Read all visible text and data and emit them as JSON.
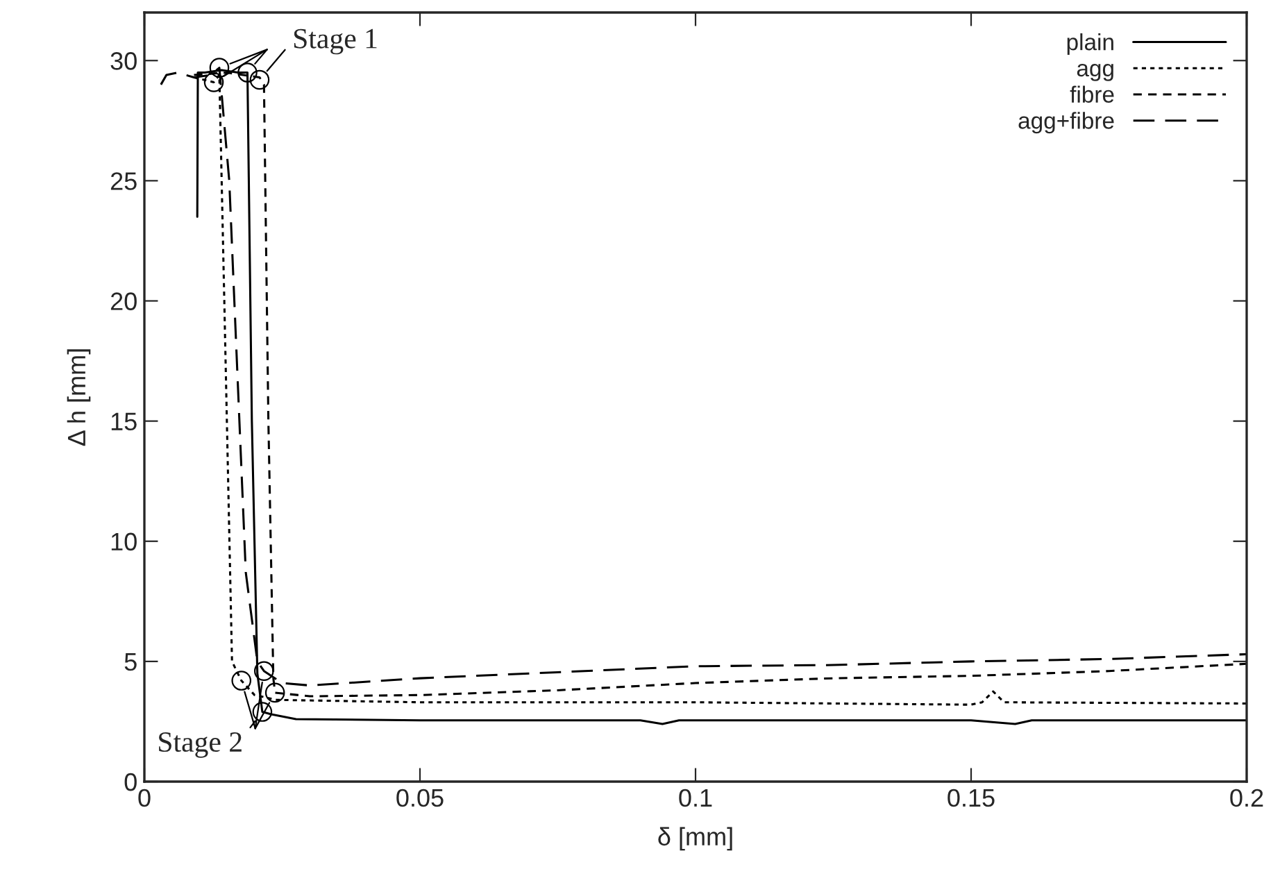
{
  "chart_data": {
    "type": "line",
    "xlabel": "δ [mm]",
    "ylabel": "Δ h [mm]",
    "xlim": [
      0,
      0.2
    ],
    "ylim": [
      0,
      32
    ],
    "xticks": [
      0,
      0.05,
      0.1,
      0.15,
      0.2
    ],
    "yticks": [
      0,
      5,
      10,
      15,
      20,
      25,
      30
    ],
    "grid": false,
    "legend": "top right",
    "series": [
      {
        "name": "plain",
        "color": "#000000",
        "line_style": "solid",
        "x": [
          0.0096,
          0.0097,
          0.011,
          0.014,
          0.017,
          0.0187,
          0.0195,
          0.0205,
          0.0214,
          0.023,
          0.0275,
          0.05,
          0.09,
          0.094,
          0.097,
          0.15,
          0.158,
          0.161,
          0.2
        ],
        "values": [
          23.5,
          29.5,
          29.5,
          29.6,
          29.5,
          29.5,
          15,
          4.5,
          2.9,
          2.8,
          2.6,
          2.55,
          2.55,
          2.4,
          2.55,
          2.55,
          2.4,
          2.55,
          2.55
        ]
      },
      {
        "name": "agg",
        "color": "#000000",
        "line_style": "dotted",
        "x": [
          0.009,
          0.0126,
          0.0136,
          0.0145,
          0.0159,
          0.0176,
          0.02,
          0.024,
          0.05,
          0.1,
          0.15,
          0.152,
          0.154,
          0.156,
          0.2
        ],
        "values": [
          29.3,
          29.1,
          29.4,
          20,
          5,
          4.2,
          3.6,
          3.4,
          3.3,
          3.3,
          3.2,
          3.3,
          3.75,
          3.3,
          3.25
        ]
      },
      {
        "name": "fibre",
        "color": "#000000",
        "line_style": "dashed",
        "x": [
          0.009,
          0.015,
          0.0209,
          0.0217,
          0.0225,
          0.0234,
          0.0237,
          0.03,
          0.05,
          0.075,
          0.1,
          0.125,
          0.15,
          0.175,
          0.2
        ],
        "values": [
          29.4,
          29.5,
          29.3,
          29.0,
          15,
          4.3,
          3.7,
          3.55,
          3.6,
          3.8,
          4.1,
          4.3,
          4.4,
          4.6,
          4.9
        ]
      },
      {
        "name": "agg+fibre",
        "color": "#000000",
        "line_style": "longdash",
        "x": [
          0.003,
          0.004,
          0.006,
          0.009,
          0.012,
          0.0136,
          0.0154,
          0.0184,
          0.0205,
          0.0217,
          0.025,
          0.03,
          0.05,
          0.075,
          0.1,
          0.125,
          0.15,
          0.175,
          0.2
        ],
        "values": [
          29.0,
          29.4,
          29.5,
          29.3,
          29.4,
          29.7,
          25,
          8.7,
          5,
          4.6,
          4.1,
          4.0,
          4.3,
          4.55,
          4.8,
          4.85,
          5.0,
          5.1,
          5.3
        ]
      },
      {
        "type": "scatter",
        "color": "#000000",
        "marker": "circle",
        "x": [
          0.0126,
          0.0136,
          0.0187,
          0.0209,
          0.0176,
          0.0217,
          0.0237,
          0.0214
        ],
        "values": [
          29.1,
          29.7,
          29.5,
          29.2,
          4.2,
          4.6,
          3.7,
          2.9
        ]
      }
    ],
    "annotations": [
      {
        "text": "Stage 1",
        "x": 0.0209,
        "y": 29.2
      },
      {
        "text": "Stage 2",
        "x": 0.0214,
        "y": 2.9
      }
    ]
  }
}
